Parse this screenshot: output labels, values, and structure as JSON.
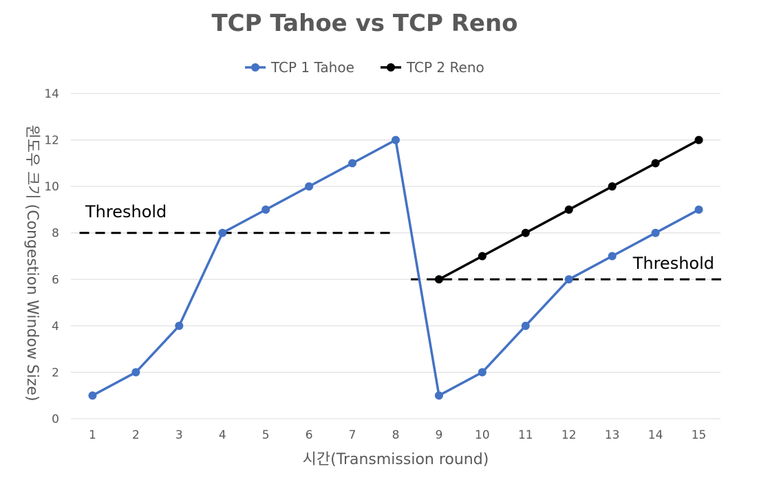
{
  "chart_data": {
    "type": "line",
    "title": "TCP Tahoe vs TCP Reno",
    "xlabel": "시간(Transmission round)",
    "ylabel": "윈도우 크기 (Congestion Window Size)",
    "ylim": [
      0,
      14
    ],
    "yticks": [
      0,
      2,
      4,
      6,
      8,
      10,
      12,
      14
    ],
    "categories": [
      "1",
      "2",
      "3",
      "4",
      "5",
      "6",
      "7",
      "8",
      "9",
      "10",
      "11",
      "12",
      "13",
      "14",
      "15"
    ],
    "grid": true,
    "legend_position": "top",
    "series": [
      {
        "name": "TCP 1 Tahoe",
        "color": "#4472C4",
        "x": [
          1,
          2,
          3,
          4,
          5,
          6,
          7,
          8,
          9,
          10,
          11,
          12,
          13,
          14,
          15
        ],
        "values": [
          1,
          2,
          4,
          8,
          9,
          10,
          11,
          12,
          1,
          2,
          4,
          6,
          7,
          8,
          9
        ]
      },
      {
        "name": "TCP 2 Reno",
        "color": "#000000",
        "x": [
          9,
          10,
          11,
          12,
          13,
          14,
          15
        ],
        "values": [
          6,
          7,
          8,
          9,
          10,
          11,
          12
        ]
      }
    ],
    "annotations": [
      {
        "text": "Threshold",
        "y": 8,
        "x_from": 0.7,
        "x_to": 8
      },
      {
        "text": "Threshold",
        "y": 6,
        "x_from": 8.35,
        "x_to": 15.55
      }
    ]
  }
}
